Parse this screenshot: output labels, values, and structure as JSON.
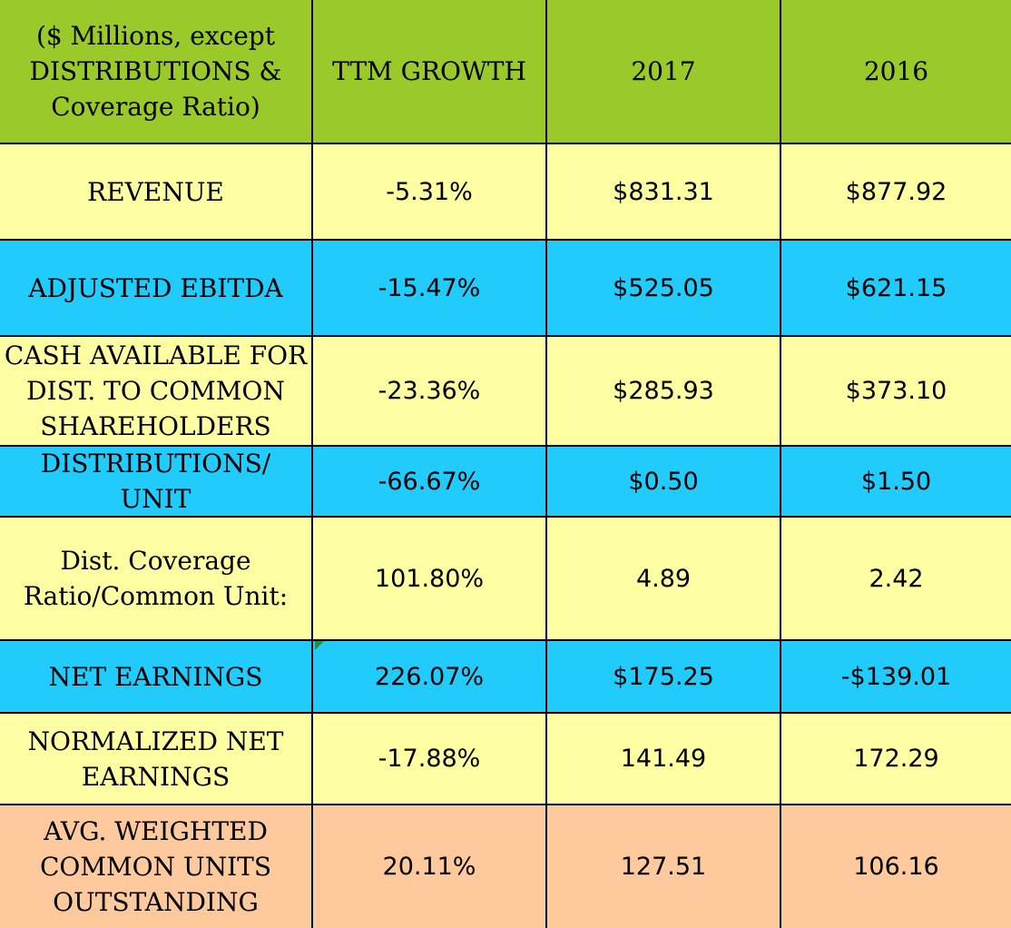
{
  "table": {
    "header": {
      "label": "($ Millions, except\nDISTRIBUTIONS &\nCoverage Ratio)",
      "ttm": "TTM GROWTH",
      "y2017": "2017",
      "y2016": "2016"
    },
    "rows": [
      {
        "label": "REVENUE",
        "ttm": "-5.31%",
        "y2017": "$831.31",
        "y2016": "$877.92",
        "fill": "#fefea2"
      },
      {
        "label": "ADJUSTED EBITDA",
        "ttm": "-15.47%",
        "y2017": "$525.05",
        "y2016": "$621.15",
        "fill": "#21ccfc"
      },
      {
        "label": "CASH AVAILABLE FOR\nDIST. TO COMMON\nSHAREHOLDERS",
        "ttm": "-23.36%",
        "y2017": "$285.93",
        "y2016": "$373.10",
        "fill": "#fefea2"
      },
      {
        "label": "DISTRIBUTIONS/ UNIT",
        "ttm": "-66.67%",
        "y2017": "$0.50",
        "y2016": "$1.50",
        "fill": "#21ccfc"
      },
      {
        "label": "Dist. Coverage\nRatio/Common Unit:",
        "ttm": "101.80%",
        "y2017": "4.89",
        "y2016": "2.42",
        "fill": "#fefea2"
      },
      {
        "label": "NET EARNINGS",
        "ttm": "226.07%",
        "y2017": "$175.25",
        "y2016": "-$139.01",
        "fill": "#21ccfc"
      },
      {
        "label": "NORMALIZED NET\nEARNINGS",
        "ttm": "-17.88%",
        "y2017": "141.49",
        "y2016": "172.29",
        "fill": "#fefea2"
      },
      {
        "label": "AVG. WEIGHTED\nCOMMON UNITS\nOUTSTANDING",
        "ttm": "20.11%",
        "y2017": "127.51",
        "y2016": "106.16",
        "fill": "#fdc99d"
      }
    ]
  },
  "colors": {
    "header_fill": "#9ac92a",
    "yellow_fill": "#fefea2",
    "cyan_fill": "#21ccfc",
    "peach_fill": "#fdc99d",
    "border": "#000000",
    "comment_marker": "#2e8b2e"
  }
}
